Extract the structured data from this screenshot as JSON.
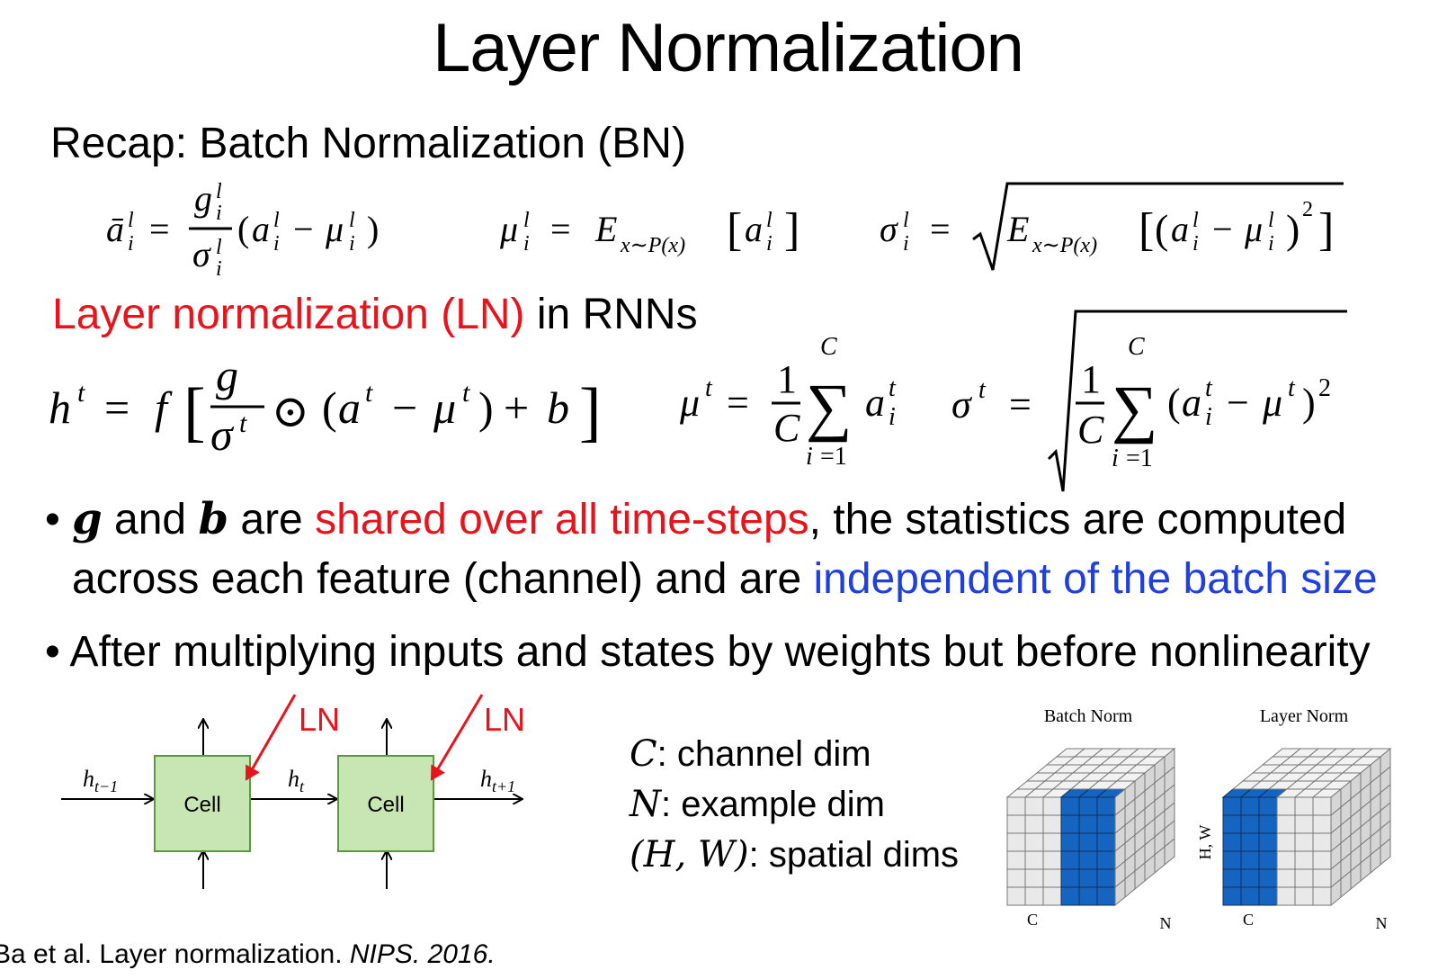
{
  "title": "Layer Normalization",
  "recap": "Recap: Batch Normalization (BN)",
  "ln_heading": {
    "highlight": "Layer normalization (LN)",
    "rest": " in RNNs"
  },
  "bullet1": {
    "g": "g",
    "and1": " and ",
    "b": "b",
    "are1": " are ",
    "shared": "shared over all time-steps",
    "rest1": ", the statistics are computed",
    "line2a": "across each feature (channel) and are ",
    "independent": "independent of the batch size"
  },
  "bullet2": "After multiplying inputs and states by weights but before nonlinearity",
  "rnn": {
    "cell1": "Cell",
    "cell2": "Cell",
    "ln1": "LN",
    "ln2": "LN",
    "h_prev": "h",
    "h_prev_sub": "t−1",
    "h_cur": "h",
    "h_cur_sub": "t",
    "h_next": "h",
    "h_next_sub": "t+1"
  },
  "legend": {
    "c_sym": "C",
    "c_text": ": channel dim",
    "n_sym": "N",
    "n_text": ": example dim",
    "hw_sym": "(H, W)",
    "hw_text": ": spatial dims"
  },
  "cubes": {
    "batch_title": "Batch Norm",
    "layer_title": "Layer Norm",
    "axis_hw": "H, W",
    "axis_c": "C",
    "axis_n": "N",
    "highlight_color": "#1565c0"
  },
  "footer": {
    "prefix": "Ba et al. Layer normalization. ",
    "venue": "NIPS",
    "year": ". 2016."
  }
}
